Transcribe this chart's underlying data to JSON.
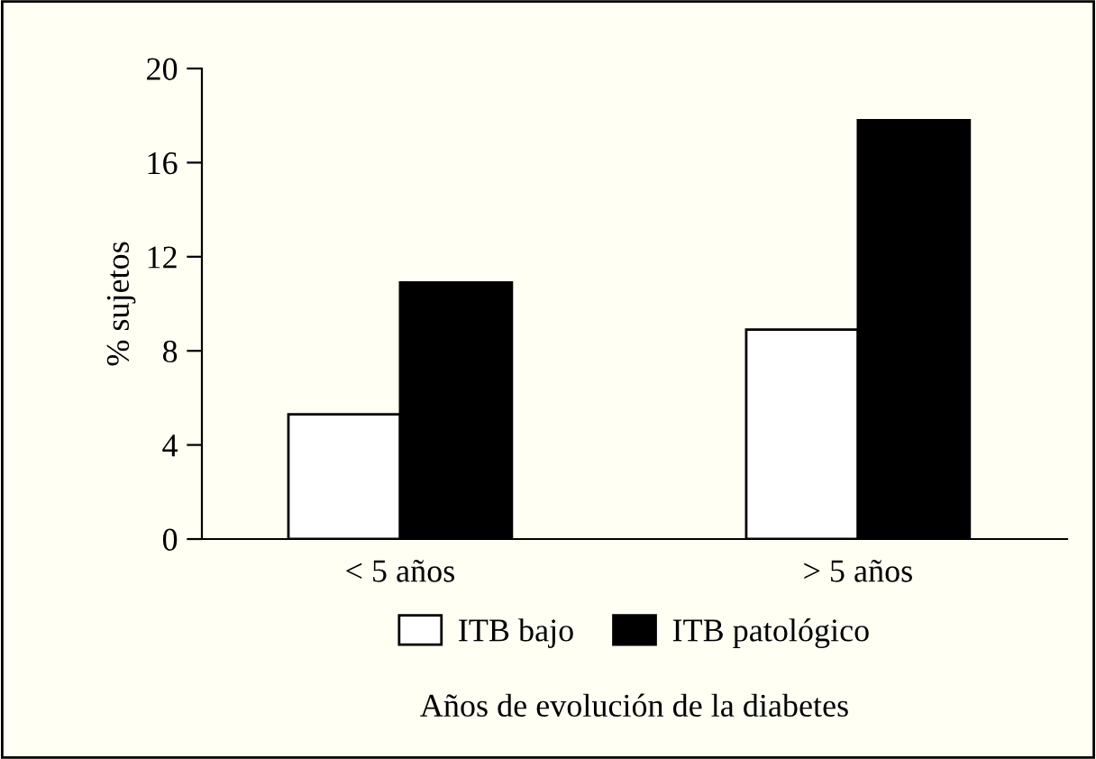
{
  "chart_data": {
    "type": "bar",
    "xlabel": "Años de evolución de la diabetes",
    "ylabel": "% sujetos",
    "categories": [
      "< 5 años",
      "> 5 años"
    ],
    "series": [
      {
        "name": "ITB bajo",
        "color": "#ffffff",
        "values": [
          5.3,
          8.9
        ]
      },
      {
        "name": "ITB patológico",
        "color": "#000000",
        "values": [
          10.9,
          17.8
        ]
      }
    ],
    "ylim": [
      0,
      20
    ],
    "yticks": [
      0,
      4,
      8,
      12,
      16,
      20
    ],
    "grid": false,
    "legend": "bottom"
  }
}
